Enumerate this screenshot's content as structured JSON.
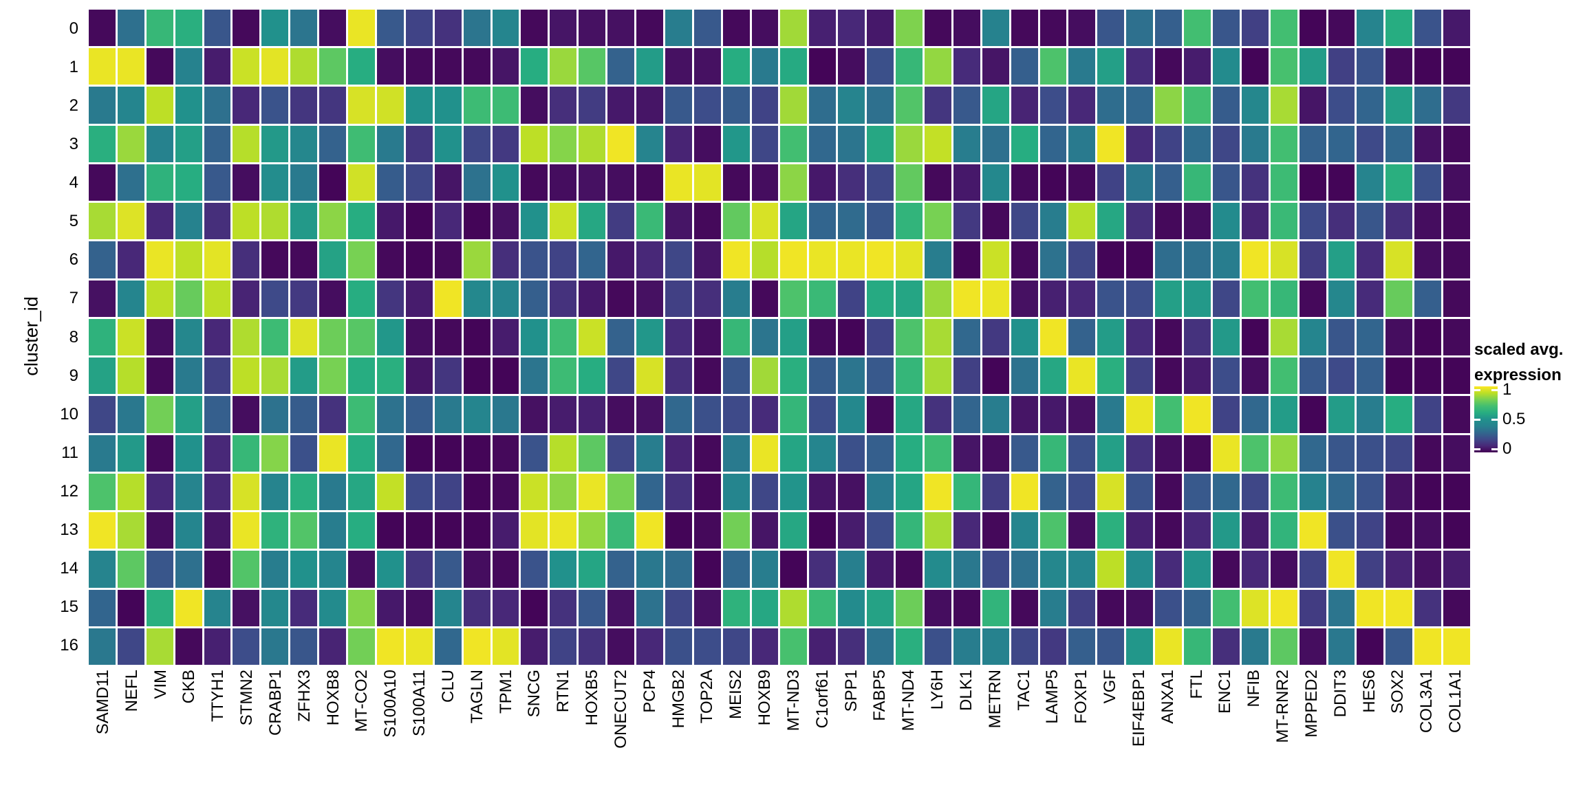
{
  "chart_data": {
    "type": "heatmap",
    "title": "",
    "xlabel": "",
    "ylabel": "cluster_id",
    "grid": "off",
    "legend_position": "right",
    "colormap_name": "viridis",
    "colormap": [
      "#440154",
      "#482878",
      "#3e4a89",
      "#31688e",
      "#26828e",
      "#21918c",
      "#27ad81",
      "#42be71",
      "#77d153",
      "#bddf26",
      "#fde725"
    ],
    "value_range": [
      0,
      1
    ],
    "legend": {
      "title_line1": "scaled avg.",
      "title_line2": "expression",
      "ticks": [
        {
          "label": "1",
          "value": 1
        },
        {
          "label": "0.5",
          "value": 0.5
        },
        {
          "label": "0",
          "value": 0
        }
      ]
    },
    "categories_x": [
      "SAMD11",
      "NEFL",
      "VIM",
      "CKB",
      "TTYH1",
      "STMN2",
      "CRABP1",
      "ZFHX3",
      "HOXB8",
      "MT-CO2",
      "S100A10",
      "S100A11",
      "CLU",
      "TAGLN",
      "TPM1",
      "SNCG",
      "RTN1",
      "HOXB5",
      "ONECUT2",
      "PCP4",
      "HMGB2",
      "TOP2A",
      "MEIS2",
      "HOXB9",
      "MT-ND3",
      "C1orf61",
      "SPP1",
      "FABP5",
      "MT-ND4",
      "LY6H",
      "DLK1",
      "METRN",
      "TAC1",
      "LAMP5",
      "FOXP1",
      "VGF",
      "EIF4EBP1",
      "ANXA1",
      "FTL",
      "ENC1",
      "NFIB",
      "MT-RNR2",
      "MPPED2",
      "DDIT3",
      "HES6",
      "SOX2",
      "COL3A1",
      "COL1A1"
    ],
    "categories_y": [
      "0",
      "1",
      "2",
      "3",
      "4",
      "5",
      "6",
      "7",
      "8",
      "9",
      "10",
      "11",
      "12",
      "13",
      "14",
      "15",
      "16"
    ],
    "values": [
      [
        0.02,
        0.33,
        0.66,
        0.61,
        0.24,
        0.02,
        0.5,
        0.35,
        0.03,
        0.97,
        0.25,
        0.18,
        0.13,
        0.35,
        0.42,
        0.02,
        0.05,
        0.04,
        0.04,
        0.02,
        0.38,
        0.25,
        0.02,
        0.03,
        0.86,
        0.08,
        0.1,
        0.06,
        0.81,
        0.02,
        0.03,
        0.4,
        0.02,
        0.02,
        0.03,
        0.24,
        0.33,
        0.27,
        0.7,
        0.24,
        0.17,
        0.7,
        0.01,
        0.02,
        0.41,
        0.6,
        0.23,
        0.06
      ],
      [
        0.97,
        0.97,
        0.02,
        0.4,
        0.07,
        0.92,
        0.96,
        0.88,
        0.75,
        0.6,
        0.03,
        0.02,
        0.02,
        0.02,
        0.05,
        0.6,
        0.85,
        0.74,
        0.28,
        0.54,
        0.04,
        0.04,
        0.6,
        0.37,
        0.59,
        0.01,
        0.03,
        0.22,
        0.66,
        0.84,
        0.11,
        0.05,
        0.27,
        0.72,
        0.37,
        0.55,
        0.11,
        0.02,
        0.07,
        0.46,
        0.01,
        0.71,
        0.54,
        0.17,
        0.23,
        0.02,
        0.01,
        0.01
      ],
      [
        0.37,
        0.42,
        0.9,
        0.5,
        0.33,
        0.1,
        0.23,
        0.14,
        0.14,
        0.94,
        0.93,
        0.5,
        0.5,
        0.68,
        0.68,
        0.03,
        0.12,
        0.16,
        0.06,
        0.05,
        0.25,
        0.21,
        0.26,
        0.18,
        0.86,
        0.32,
        0.41,
        0.33,
        0.73,
        0.14,
        0.25,
        0.57,
        0.09,
        0.21,
        0.1,
        0.32,
        0.3,
        0.83,
        0.7,
        0.26,
        0.43,
        0.87,
        0.05,
        0.21,
        0.29,
        0.55,
        0.32,
        0.15
      ],
      [
        0.61,
        0.85,
        0.4,
        0.55,
        0.28,
        0.89,
        0.53,
        0.43,
        0.28,
        0.69,
        0.37,
        0.14,
        0.5,
        0.19,
        0.15,
        0.9,
        0.82,
        0.88,
        0.98,
        0.41,
        0.09,
        0.03,
        0.52,
        0.19,
        0.7,
        0.3,
        0.35,
        0.58,
        0.85,
        0.91,
        0.38,
        0.33,
        0.6,
        0.29,
        0.37,
        0.98,
        0.11,
        0.18,
        0.32,
        0.19,
        0.37,
        0.7,
        0.28,
        0.29,
        0.2,
        0.3,
        0.04,
        0.02
      ],
      [
        0.02,
        0.33,
        0.63,
        0.6,
        0.25,
        0.03,
        0.47,
        0.37,
        0.01,
        0.93,
        0.26,
        0.19,
        0.05,
        0.34,
        0.5,
        0.02,
        0.03,
        0.04,
        0.03,
        0.02,
        0.97,
        0.96,
        0.02,
        0.03,
        0.83,
        0.06,
        0.12,
        0.19,
        0.76,
        0.02,
        0.06,
        0.44,
        0.02,
        0.01,
        0.02,
        0.18,
        0.36,
        0.27,
        0.66,
        0.24,
        0.13,
        0.68,
        0.01,
        0.01,
        0.41,
        0.61,
        0.22,
        0.03
      ],
      [
        0.87,
        0.95,
        0.1,
        0.4,
        0.12,
        0.9,
        0.88,
        0.53,
        0.83,
        0.6,
        0.06,
        0.01,
        0.1,
        0.01,
        0.04,
        0.5,
        0.92,
        0.58,
        0.16,
        0.67,
        0.05,
        0.02,
        0.76,
        0.94,
        0.57,
        0.29,
        0.31,
        0.24,
        0.64,
        0.8,
        0.15,
        0.02,
        0.19,
        0.38,
        0.89,
        0.58,
        0.12,
        0.02,
        0.03,
        0.46,
        0.09,
        0.67,
        0.2,
        0.12,
        0.24,
        0.12,
        0.03,
        0.02
      ],
      [
        0.28,
        0.1,
        0.97,
        0.9,
        0.96,
        0.12,
        0.02,
        0.02,
        0.56,
        0.8,
        0.02,
        0.01,
        0.02,
        0.85,
        0.12,
        0.23,
        0.18,
        0.29,
        0.06,
        0.1,
        0.19,
        0.05,
        0.98,
        0.89,
        0.98,
        0.97,
        0.97,
        0.98,
        0.96,
        0.38,
        0.01,
        0.92,
        0.02,
        0.34,
        0.19,
        0.01,
        0.01,
        0.32,
        0.33,
        0.38,
        0.98,
        0.94,
        0.16,
        0.55,
        0.11,
        0.94,
        0.03,
        0.02
      ],
      [
        0.04,
        0.42,
        0.9,
        0.77,
        0.9,
        0.09,
        0.2,
        0.15,
        0.03,
        0.6,
        0.14,
        0.07,
        0.98,
        0.44,
        0.42,
        0.27,
        0.13,
        0.06,
        0.02,
        0.04,
        0.17,
        0.12,
        0.38,
        0.02,
        0.72,
        0.67,
        0.18,
        0.59,
        0.57,
        0.85,
        0.98,
        0.97,
        0.04,
        0.08,
        0.1,
        0.23,
        0.21,
        0.55,
        0.53,
        0.19,
        0.7,
        0.66,
        0.02,
        0.43,
        0.11,
        0.77,
        0.27,
        0.02
      ],
      [
        0.63,
        0.92,
        0.03,
        0.43,
        0.1,
        0.88,
        0.68,
        0.95,
        0.78,
        0.74,
        0.52,
        0.03,
        0.02,
        0.01,
        0.07,
        0.5,
        0.69,
        0.92,
        0.28,
        0.52,
        0.11,
        0.03,
        0.66,
        0.35,
        0.55,
        0.02,
        0.01,
        0.18,
        0.72,
        0.87,
        0.3,
        0.15,
        0.5,
        0.98,
        0.28,
        0.54,
        0.11,
        0.02,
        0.13,
        0.53,
        0.01,
        0.87,
        0.42,
        0.24,
        0.29,
        0.03,
        0.01,
        0.02
      ],
      [
        0.56,
        0.89,
        0.02,
        0.37,
        0.17,
        0.9,
        0.87,
        0.54,
        0.8,
        0.6,
        0.61,
        0.05,
        0.14,
        0.01,
        0.01,
        0.35,
        0.68,
        0.6,
        0.19,
        0.94,
        0.12,
        0.02,
        0.24,
        0.86,
        0.61,
        0.26,
        0.35,
        0.25,
        0.65,
        0.87,
        0.17,
        0.01,
        0.34,
        0.58,
        0.97,
        0.61,
        0.17,
        0.02,
        0.07,
        0.21,
        0.03,
        0.7,
        0.25,
        0.2,
        0.27,
        0.01,
        0.01,
        0.01
      ],
      [
        0.19,
        0.36,
        0.79,
        0.55,
        0.27,
        0.03,
        0.34,
        0.26,
        0.13,
        0.68,
        0.34,
        0.26,
        0.37,
        0.42,
        0.36,
        0.04,
        0.07,
        0.08,
        0.03,
        0.04,
        0.3,
        0.22,
        0.2,
        0.11,
        0.65,
        0.21,
        0.44,
        0.02,
        0.58,
        0.13,
        0.29,
        0.38,
        0.05,
        0.06,
        0.04,
        0.37,
        0.97,
        0.7,
        0.98,
        0.18,
        0.3,
        0.54,
        0.01,
        0.54,
        0.38,
        0.6,
        0.18,
        0.02
      ],
      [
        0.37,
        0.53,
        0.02,
        0.5,
        0.1,
        0.66,
        0.82,
        0.22,
        0.97,
        0.6,
        0.3,
        0.01,
        0.01,
        0.01,
        0.02,
        0.23,
        0.89,
        0.75,
        0.19,
        0.38,
        0.09,
        0.02,
        0.37,
        0.97,
        0.57,
        0.42,
        0.22,
        0.27,
        0.6,
        0.68,
        0.05,
        0.03,
        0.25,
        0.66,
        0.22,
        0.55,
        0.13,
        0.03,
        0.02,
        0.97,
        0.72,
        0.84,
        0.3,
        0.24,
        0.22,
        0.19,
        0.02,
        0.03
      ],
      [
        0.72,
        0.89,
        0.1,
        0.41,
        0.1,
        0.94,
        0.41,
        0.61,
        0.37,
        0.58,
        0.91,
        0.2,
        0.18,
        0.01,
        0.02,
        0.92,
        0.83,
        0.97,
        0.8,
        0.29,
        0.13,
        0.02,
        0.42,
        0.19,
        0.51,
        0.05,
        0.04,
        0.37,
        0.57,
        0.98,
        0.65,
        0.16,
        0.98,
        0.28,
        0.21,
        0.94,
        0.23,
        0.02,
        0.25,
        0.3,
        0.19,
        0.68,
        0.4,
        0.3,
        0.23,
        0.04,
        0.01,
        0.01
      ],
      [
        0.98,
        0.87,
        0.03,
        0.42,
        0.05,
        0.97,
        0.63,
        0.73,
        0.38,
        0.6,
        0.01,
        0.01,
        0.01,
        0.01,
        0.07,
        0.96,
        0.97,
        0.84,
        0.67,
        0.98,
        0.01,
        0.02,
        0.79,
        0.05,
        0.58,
        0.01,
        0.07,
        0.21,
        0.65,
        0.87,
        0.1,
        0.02,
        0.42,
        0.72,
        0.03,
        0.62,
        0.08,
        0.02,
        0.1,
        0.53,
        0.07,
        0.64,
        0.98,
        0.22,
        0.18,
        0.02,
        0.03,
        0.01
      ],
      [
        0.41,
        0.75,
        0.24,
        0.33,
        0.02,
        0.73,
        0.38,
        0.5,
        0.42,
        0.03,
        0.5,
        0.14,
        0.25,
        0.03,
        0.02,
        0.23,
        0.5,
        0.57,
        0.28,
        0.36,
        0.32,
        0.01,
        0.3,
        0.38,
        0.01,
        0.12,
        0.39,
        0.06,
        0.02,
        0.46,
        0.36,
        0.2,
        0.33,
        0.43,
        0.42,
        0.9,
        0.46,
        0.11,
        0.51,
        0.02,
        0.1,
        0.03,
        0.18,
        0.98,
        0.17,
        0.09,
        0.04,
        0.07
      ],
      [
        0.29,
        0.01,
        0.61,
        0.98,
        0.41,
        0.04,
        0.44,
        0.11,
        0.46,
        0.82,
        0.06,
        0.03,
        0.42,
        0.12,
        0.1,
        0.01,
        0.13,
        0.25,
        0.04,
        0.34,
        0.19,
        0.04,
        0.63,
        0.58,
        0.88,
        0.67,
        0.46,
        0.56,
        0.78,
        0.03,
        0.02,
        0.64,
        0.02,
        0.38,
        0.17,
        0.02,
        0.03,
        0.22,
        0.28,
        0.7,
        0.95,
        0.98,
        0.16,
        0.35,
        0.98,
        0.98,
        0.13,
        0.02
      ],
      [
        0.36,
        0.19,
        0.87,
        0.02,
        0.08,
        0.21,
        0.36,
        0.24,
        0.09,
        0.79,
        0.98,
        0.97,
        0.3,
        0.98,
        0.96,
        0.07,
        0.18,
        0.13,
        0.03,
        0.1,
        0.22,
        0.21,
        0.19,
        0.1,
        0.71,
        0.08,
        0.12,
        0.34,
        0.61,
        0.22,
        0.38,
        0.4,
        0.19,
        0.15,
        0.27,
        0.24,
        0.52,
        0.97,
        0.66,
        0.12,
        0.37,
        0.75,
        0.03,
        0.36,
        0.01,
        0.25,
        0.98,
        0.98
      ]
    ]
  }
}
